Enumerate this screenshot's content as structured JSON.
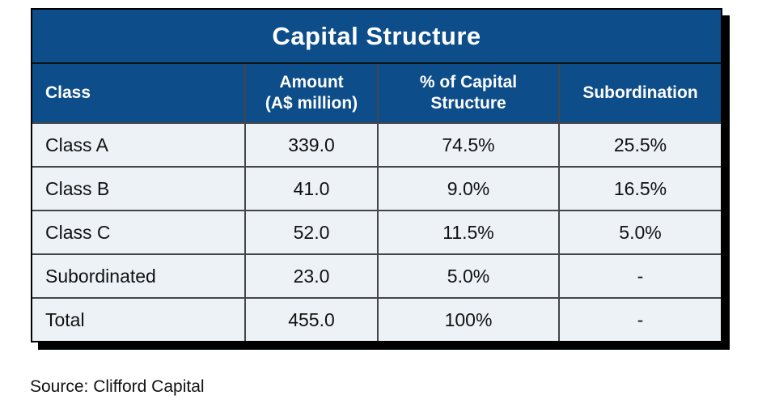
{
  "colors": {
    "header_background": "#0d4d8a",
    "header_text": "#ffffff",
    "row_background": "#edf2f7",
    "cell_text": "#111111",
    "inner_border": "#43474c",
    "outer_border": "#000000",
    "drop_shadow": "#000000"
  },
  "chart_data": {
    "type": "table",
    "title": "Capital Structure",
    "columns": [
      "Class",
      "Amount\n(A$ million)",
      "% of Capital\nStructure",
      "Subordination"
    ],
    "rows": [
      [
        "Class A",
        "339.0",
        "74.5%",
        "25.5%"
      ],
      [
        "Class B",
        "41.0",
        "9.0%",
        "16.5%"
      ],
      [
        "Class C",
        "52.0",
        "11.5%",
        "5.0%"
      ],
      [
        "Subordinated",
        "23.0",
        "5.0%",
        "-"
      ],
      [
        "Total",
        "455.0",
        "100%",
        "-"
      ]
    ],
    "amounts_numeric": [
      339.0,
      41.0,
      52.0,
      23.0,
      455.0
    ],
    "percent_of_capital_structure": [
      74.5,
      9.0,
      11.5,
      5.0,
      100
    ],
    "subordination_percent": [
      25.5,
      16.5,
      5.0,
      null,
      null
    ],
    "source": "Source: Clifford Capital"
  }
}
